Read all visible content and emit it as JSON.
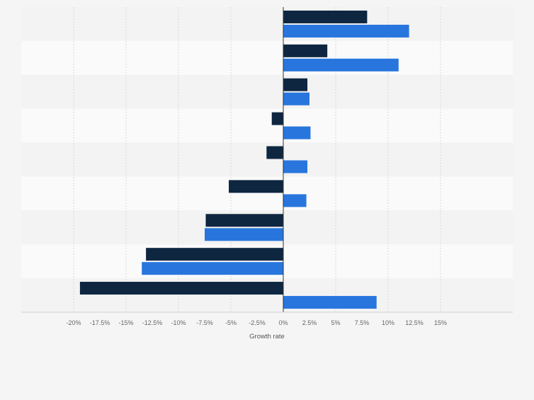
{
  "chart_data": {
    "type": "bar",
    "orientation": "horizontal",
    "xlabel": "Growth rate",
    "xlim": [
      -20,
      17.5
    ],
    "xticks": [
      -20,
      -17.5,
      -15,
      -12.5,
      -10,
      -7.5,
      -5,
      -2.5,
      0,
      2.5,
      5,
      7.5,
      10,
      12.5,
      15
    ],
    "xtick_labels": [
      "-20%",
      "-17.5%",
      "-15%",
      "-12.5%",
      "-10%",
      "-7.5%",
      "-5%",
      "-2.5%",
      "0%",
      "2.5%",
      "5%",
      "7.5%",
      "10%",
      "12.5%",
      "15%"
    ],
    "categories": [
      "",
      "",
      "",
      "",
      "",
      "",
      "",
      "",
      ""
    ],
    "series": [
      {
        "color": "#0e2640",
        "values": [
          8.0,
          4.2,
          2.3,
          -1.1,
          -1.6,
          -5.2,
          -7.4,
          -13.1,
          -19.4
        ]
      },
      {
        "color": "#2876dd",
        "values": [
          12.0,
          11.0,
          2.5,
          2.6,
          2.3,
          2.2,
          -7.5,
          -13.5,
          8.9
        ]
      }
    ],
    "grid": true,
    "legend": "none"
  }
}
